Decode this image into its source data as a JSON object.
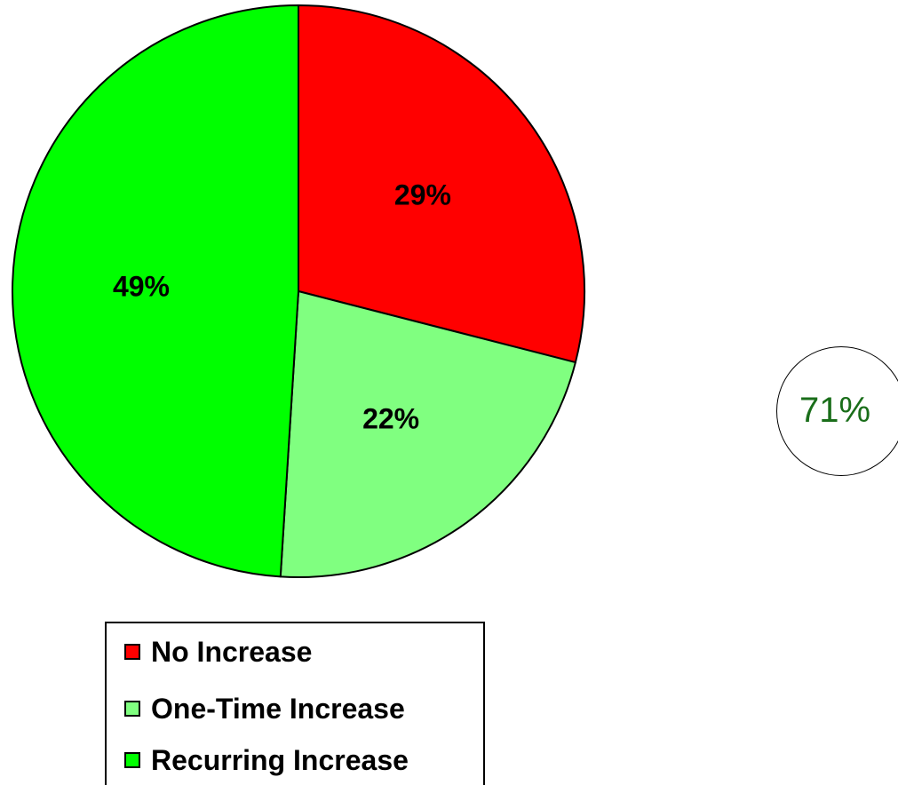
{
  "chart_data": {
    "type": "pie",
    "categories": [
      "No Increase",
      "One-Time Increase",
      "Recurring Increase"
    ],
    "values": [
      29,
      22,
      49
    ],
    "value_labels": [
      "29%",
      "22%",
      "49%"
    ],
    "colors": [
      "#ff0000",
      "#80ff80",
      "#00ff00"
    ],
    "start_angle": "12 o'clock",
    "direction": "clockwise",
    "legend": {
      "placement": "bottom-left",
      "entries": [
        "No Increase",
        "One-Time Increase",
        "Recurring Increase"
      ]
    },
    "annotations": [
      {
        "text": "71%",
        "shape": "circle",
        "color": "#1a6e1a"
      }
    ]
  }
}
